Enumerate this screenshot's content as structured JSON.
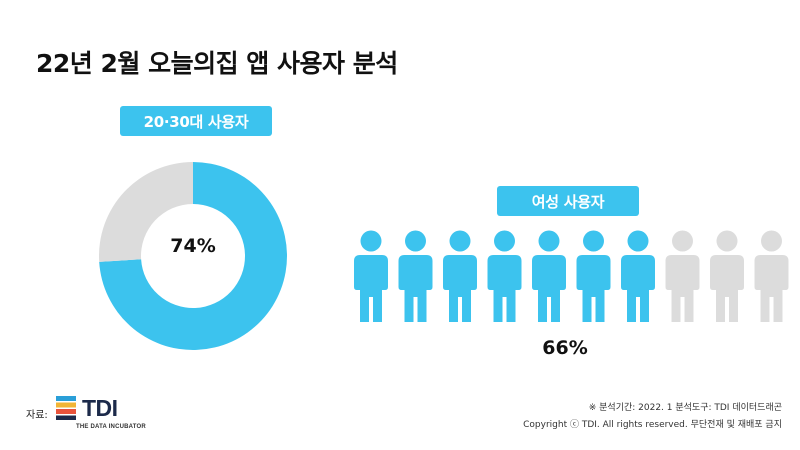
{
  "title": "22년 2월 오늘의집 앱 사용자 분석",
  "colors": {
    "accent": "#3cc3ee",
    "inactive": "#dcdcdc"
  },
  "chart_data": [
    {
      "type": "pie",
      "title": "20·30대 사용자",
      "values": [
        74,
        26
      ],
      "center_label": "74%"
    },
    {
      "type": "pictograph",
      "title": "여성 사용자",
      "icons_total": 10,
      "icons_filled": 7,
      "value": 66,
      "value_label": "66%"
    }
  ],
  "footer": {
    "source_label": "자료:",
    "logo_text": "TDI",
    "logo_subtitle": "THE DATA INCUBATOR",
    "note_line1": "※ 분석기간: 2022. 1   분석도구: TDI 데이터드래곤",
    "note_line2": "Copyright ⓒ TDI. All rights reserved. 무단전재 및 재배포 금지"
  }
}
